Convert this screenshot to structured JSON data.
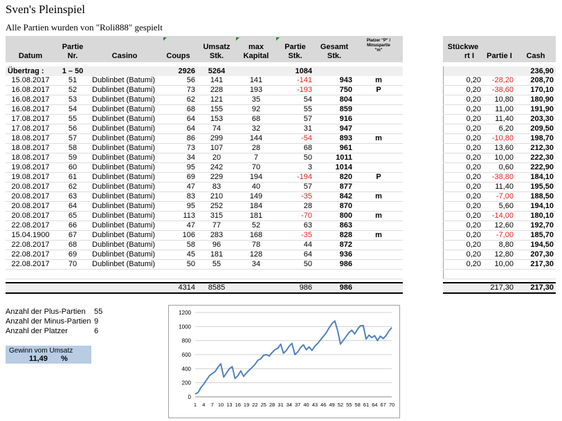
{
  "title": "Sven's Pleinspiel",
  "subtitle": "Alle Partien wurden von \"Roli888\" gespielt",
  "headers": {
    "datum": "Datum",
    "partie_nr": [
      "Partie",
      "Nr."
    ],
    "casino": "Casino",
    "coups": "Coups",
    "umsatz": [
      "Umsatz",
      "Stk."
    ],
    "max_kapital": [
      "max",
      "Kapital"
    ],
    "partie_stk": [
      "Partie",
      "Stk."
    ],
    "gesamt": [
      "Gesamt",
      "Stk."
    ],
    "platzer": [
      "Platzer \"P\" /",
      "Minuspartie",
      "\"m\""
    ],
    "stueckwert": [
      "Stückwe",
      "rt I"
    ],
    "partie_i": "Partie I",
    "cash": "Cash"
  },
  "carry": {
    "label": "Übertrag :",
    "range": "1 – 50",
    "coups": "2926",
    "umsatz": "5264",
    "partie": "1084",
    "cash": "236,90"
  },
  "rows": [
    {
      "datum": "15.08.2017",
      "nr": "51",
      "casino": "Dublinbet (Batumi)",
      "coups": "56",
      "umsatz": "141",
      "kap": "141",
      "partie": "-141",
      "gesamt": "943",
      "flag": "m",
      "sw": "0,20",
      "pi": "-28,20",
      "cash": "208,70"
    },
    {
      "datum": "16.08.2017",
      "nr": "52",
      "casino": "Dublinbet (Batumi)",
      "coups": "73",
      "umsatz": "228",
      "kap": "193",
      "partie": "-193",
      "gesamt": "750",
      "flag": "P",
      "sw": "0,20",
      "pi": "-38,60",
      "cash": "170,10"
    },
    {
      "datum": "16.08.2017",
      "nr": "53",
      "casino": "Dublinbet (Batumi)",
      "coups": "62",
      "umsatz": "121",
      "kap": "35",
      "partie": "54",
      "gesamt": "804",
      "flag": "",
      "sw": "0,20",
      "pi": "10,80",
      "cash": "180,90"
    },
    {
      "datum": "16.08.2017",
      "nr": "54",
      "casino": "Dublinbet (Batumi)",
      "coups": "68",
      "umsatz": "155",
      "kap": "92",
      "partie": "55",
      "gesamt": "859",
      "flag": "",
      "sw": "0,20",
      "pi": "11,00",
      "cash": "191,90"
    },
    {
      "datum": "17.08.2017",
      "nr": "55",
      "casino": "Dublinbet (Batumi)",
      "coups": "64",
      "umsatz": "153",
      "kap": "68",
      "partie": "57",
      "gesamt": "916",
      "flag": "",
      "sw": "0,20",
      "pi": "11,40",
      "cash": "203,30"
    },
    {
      "datum": "17.08.2017",
      "nr": "56",
      "casino": "Dublinbet (Batumi)",
      "coups": "64",
      "umsatz": "74",
      "kap": "32",
      "partie": "31",
      "gesamt": "947",
      "flag": "",
      "sw": "0,20",
      "pi": "6,20",
      "cash": "209,50"
    },
    {
      "datum": "18.08.2017",
      "nr": "57",
      "casino": "Dublinbet (Batumi)",
      "coups": "86",
      "umsatz": "299",
      "kap": "144",
      "partie": "-54",
      "gesamt": "893",
      "flag": "m",
      "sw": "0,20",
      "pi": "-10,80",
      "cash": "198,70"
    },
    {
      "datum": "18.08.2017",
      "nr": "58",
      "casino": "Dublinbet (Batumi)",
      "coups": "73",
      "umsatz": "107",
      "kap": "28",
      "partie": "68",
      "gesamt": "961",
      "flag": "",
      "sw": "0,20",
      "pi": "13,60",
      "cash": "212,30"
    },
    {
      "datum": "18.08.2017",
      "nr": "59",
      "casino": "Dublinbet (Batumi)",
      "coups": "34",
      "umsatz": "20",
      "kap": "7",
      "partie": "50",
      "gesamt": "1011",
      "flag": "",
      "sw": "0,20",
      "pi": "10,00",
      "cash": "222,30"
    },
    {
      "datum": "19.08.2017",
      "nr": "60",
      "casino": "Dublinbet (Batumi)",
      "coups": "95",
      "umsatz": "242",
      "kap": "70",
      "partie": "3",
      "gesamt": "1014",
      "flag": "",
      "sw": "0,20",
      "pi": "0,60",
      "cash": "222,90"
    },
    {
      "datum": "19.08.2017",
      "nr": "61",
      "casino": "Dublinbet (Batumi)",
      "coups": "69",
      "umsatz": "229",
      "kap": "194",
      "partie": "-194",
      "gesamt": "820",
      "flag": "P",
      "sw": "0,20",
      "pi": "-38,80",
      "cash": "184,10"
    },
    {
      "datum": "20.08.2017",
      "nr": "62",
      "casino": "Dublinbet (Batumi)",
      "coups": "47",
      "umsatz": "83",
      "kap": "40",
      "partie": "57",
      "gesamt": "877",
      "flag": "",
      "sw": "0,20",
      "pi": "11,40",
      "cash": "195,50"
    },
    {
      "datum": "20.08.2017",
      "nr": "63",
      "casino": "Dublinbet (Batumi)",
      "coups": "83",
      "umsatz": "210",
      "kap": "149",
      "partie": "-35",
      "gesamt": "842",
      "flag": "m",
      "sw": "0,20",
      "pi": "-7,00",
      "cash": "188,50"
    },
    {
      "datum": "20.08.2017",
      "nr": "64",
      "casino": "Dublinbet (Batumi)",
      "coups": "95",
      "umsatz": "252",
      "kap": "184",
      "partie": "28",
      "gesamt": "870",
      "flag": "",
      "sw": "0,20",
      "pi": "5,60",
      "cash": "194,10"
    },
    {
      "datum": "20.08.2017",
      "nr": "65",
      "casino": "Dublinbet (Batumi)",
      "coups": "113",
      "umsatz": "315",
      "kap": "181",
      "partie": "-70",
      "gesamt": "800",
      "flag": "m",
      "sw": "0,20",
      "pi": "-14,00",
      "cash": "180,10"
    },
    {
      "datum": "22.08.2017",
      "nr": "66",
      "casino": "Dublinbet (Batumi)",
      "coups": "47",
      "umsatz": "77",
      "kap": "52",
      "partie": "63",
      "gesamt": "863",
      "flag": "",
      "sw": "0,20",
      "pi": "12,60",
      "cash": "192,70"
    },
    {
      "datum": "15.04.1900",
      "nr": "67",
      "casino": "Dublinbet (Batumi)",
      "coups": "106",
      "umsatz": "283",
      "kap": "168",
      "partie": "-35",
      "gesamt": "828",
      "flag": "m",
      "sw": "0,20",
      "pi": "-7,00",
      "cash": "185,70"
    },
    {
      "datum": "22.08.2017",
      "nr": "68",
      "casino": "Dublinbet (Batumi)",
      "coups": "58",
      "umsatz": "96",
      "kap": "78",
      "partie": "44",
      "gesamt": "872",
      "flag": "",
      "sw": "0,20",
      "pi": "8,80",
      "cash": "194,50"
    },
    {
      "datum": "22.08.2017",
      "nr": "69",
      "casino": "Dublinbet (Batumi)",
      "coups": "45",
      "umsatz": "181",
      "kap": "128",
      "partie": "64",
      "gesamt": "936",
      "flag": "",
      "sw": "0,20",
      "pi": "12,80",
      "cash": "207,30"
    },
    {
      "datum": "22.08.2017",
      "nr": "70",
      "casino": "Dublinbet (Batumi)",
      "coups": "50",
      "umsatz": "55",
      "kap": "34",
      "partie": "50",
      "gesamt": "986",
      "flag": "",
      "sw": "0,20",
      "pi": "10,00",
      "cash": "217,30"
    }
  ],
  "totals": {
    "coups": "4314",
    "umsatz": "8585",
    "partie": "986",
    "gesamt": "986",
    "pi": "217,30",
    "cash": "217,30"
  },
  "stats": [
    {
      "label": "Anzahl der Plus-Partien",
      "value": "55"
    },
    {
      "label": "Anzahl der Minus-Partien",
      "value": "9"
    },
    {
      "label": "Anzahl der Platzer",
      "value": "6"
    }
  ],
  "gain": {
    "label": "Gewinn vom Umsatz",
    "value": "11,49",
    "unit": "%"
  },
  "colors": {
    "line": "#4f81bd",
    "negative": "#e02020",
    "header_bg": "#d9d9d9",
    "gain_bg": "#b8cce4"
  },
  "chart_data": {
    "type": "line",
    "title": "",
    "xlabel": "",
    "ylabel": "",
    "ylim": [
      0,
      1200
    ],
    "yticks": [
      0,
      200,
      400,
      600,
      800,
      1000,
      1200
    ],
    "xticks": [
      1,
      4,
      7,
      10,
      13,
      16,
      19,
      22,
      25,
      28,
      31,
      34,
      37,
      40,
      43,
      46,
      49,
      52,
      55,
      58,
      61,
      64,
      67,
      70
    ],
    "grid": "horizontal",
    "legend": "none",
    "x": [
      1,
      2,
      3,
      4,
      5,
      6,
      7,
      8,
      9,
      10,
      11,
      12,
      13,
      14,
      15,
      16,
      17,
      18,
      19,
      20,
      21,
      22,
      23,
      24,
      25,
      26,
      27,
      28,
      29,
      30,
      31,
      32,
      33,
      34,
      35,
      36,
      37,
      38,
      39,
      40,
      41,
      42,
      43,
      44,
      45,
      46,
      47,
      48,
      49,
      50,
      51,
      52,
      53,
      54,
      55,
      56,
      57,
      58,
      59,
      60,
      61,
      62,
      63,
      64,
      65,
      66,
      67,
      68,
      69,
      70
    ],
    "series": [
      {
        "values": [
          40,
          60,
          130,
          180,
          240,
          300,
          330,
          360,
          420,
          470,
          280,
          340,
          400,
          430,
          260,
          300,
          370,
          290,
          340,
          380,
          420,
          460,
          520,
          540,
          590,
          600,
          580,
          630,
          670,
          690,
          750,
          620,
          660,
          720,
          760,
          600,
          640,
          700,
          740,
          670,
          710,
          660,
          720,
          760,
          810,
          860,
          910,
          980,
          1040,
          1080,
          943,
          750,
          804,
          859,
          916,
          947,
          893,
          961,
          1011,
          1014,
          820,
          877,
          842,
          870,
          800,
          863,
          828,
          872,
          936,
          986
        ]
      }
    ]
  }
}
